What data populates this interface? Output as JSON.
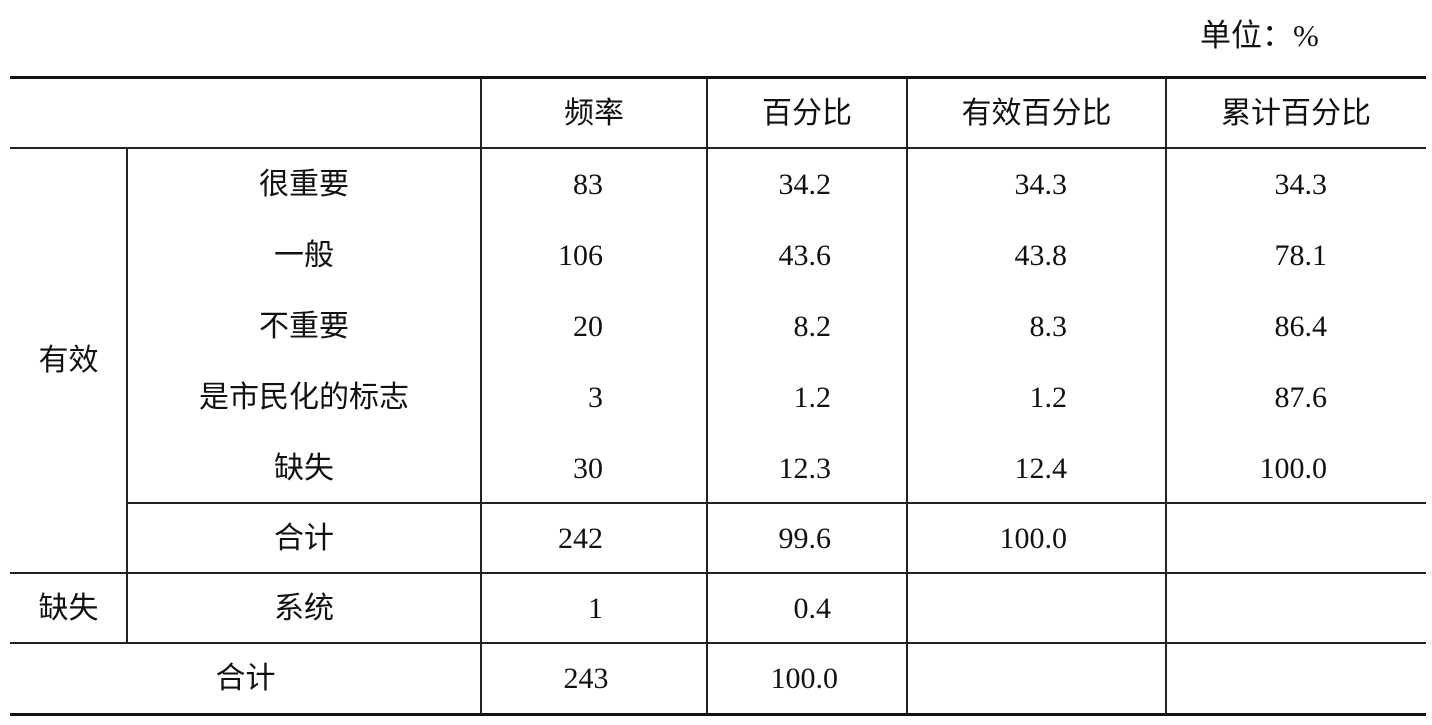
{
  "unit_label": "单位：%",
  "headers": [
    "频率",
    "百分比",
    "有效百分比",
    "累计百分比"
  ],
  "groups": {
    "valid": "有效",
    "missing": "缺失",
    "total": "合计"
  },
  "valid_rows": [
    {
      "label": "很重要",
      "freq": "83",
      "pct": "34.2",
      "valid_pct": "34.3",
      "cum_pct": "34.3"
    },
    {
      "label": "一般",
      "freq": "106",
      "pct": "43.6",
      "valid_pct": "43.8",
      "cum_pct": "78.1"
    },
    {
      "label": "不重要",
      "freq": "20",
      "pct": "8.2",
      "valid_pct": "8.3",
      "cum_pct": "86.4"
    },
    {
      "label": "是市民化的标志",
      "freq": "3",
      "pct": "1.2",
      "valid_pct": "1.2",
      "cum_pct": "87.6"
    },
    {
      "label": "缺失",
      "freq": "30",
      "pct": "12.3",
      "valid_pct": "12.4",
      "cum_pct": "100.0"
    }
  ],
  "valid_total": {
    "label": "合计",
    "freq": "242",
    "pct": "99.6",
    "valid_pct": "100.0"
  },
  "missing_row": {
    "label": "系统",
    "freq": "1",
    "pct": "0.4"
  },
  "grand_total": {
    "label": "合计",
    "freq": "243",
    "pct": "100.0"
  }
}
